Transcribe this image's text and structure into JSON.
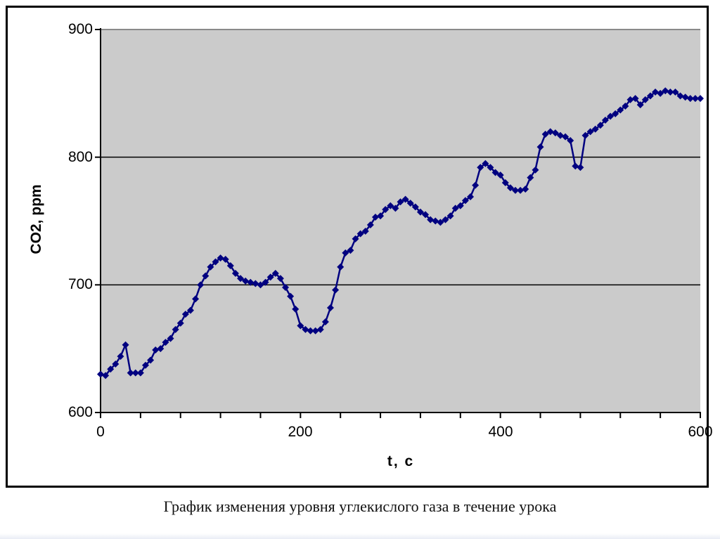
{
  "page": {
    "caption": "График изменения уровня углекислого газа в течение урока"
  },
  "chart_data": {
    "type": "line",
    "title": "",
    "xlabel": "t, c",
    "ylabel": "CO2, ppm",
    "xlim": [
      0,
      600
    ],
    "ylim": [
      600,
      900
    ],
    "x_tick_labels": [
      "0",
      "200",
      "400",
      "600"
    ],
    "x_major_ticks": [
      0,
      200,
      400,
      600
    ],
    "x_minor_tick_interval": 40,
    "y_tick_labels": [
      "600",
      "700",
      "800",
      "900"
    ],
    "y_ticks": [
      600,
      700,
      800,
      900
    ],
    "grid": "horizontal gridlines at 700, 800, 900",
    "legend": "none",
    "marker": "diamond",
    "series_color": "#000080",
    "plot_bg_color": "#CBCBCB",
    "points": [
      [
        0,
        630
      ],
      [
        5,
        629
      ],
      [
        10,
        634
      ],
      [
        15,
        638
      ],
      [
        20,
        644
      ],
      [
        25,
        653
      ],
      [
        30,
        631
      ],
      [
        35,
        631
      ],
      [
        40,
        631
      ],
      [
        45,
        637
      ],
      [
        50,
        641
      ],
      [
        55,
        649
      ],
      [
        60,
        650
      ],
      [
        65,
        655
      ],
      [
        70,
        658
      ],
      [
        75,
        665
      ],
      [
        80,
        670
      ],
      [
        85,
        677
      ],
      [
        90,
        680
      ],
      [
        95,
        689
      ],
      [
        100,
        700
      ],
      [
        105,
        707
      ],
      [
        110,
        714
      ],
      [
        115,
        718
      ],
      [
        120,
        721
      ],
      [
        125,
        720
      ],
      [
        130,
        715
      ],
      [
        135,
        709
      ],
      [
        140,
        705
      ],
      [
        145,
        703
      ],
      [
        150,
        702
      ],
      [
        155,
        701
      ],
      [
        160,
        700
      ],
      [
        165,
        702
      ],
      [
        170,
        706
      ],
      [
        175,
        709
      ],
      [
        180,
        705
      ],
      [
        185,
        698
      ],
      [
        190,
        691
      ],
      [
        195,
        681
      ],
      [
        200,
        668
      ],
      [
        205,
        665
      ],
      [
        210,
        664
      ],
      [
        215,
        664
      ],
      [
        220,
        665
      ],
      [
        225,
        671
      ],
      [
        230,
        682
      ],
      [
        235,
        696
      ],
      [
        240,
        714
      ],
      [
        245,
        725
      ],
      [
        250,
        727
      ],
      [
        255,
        736
      ],
      [
        260,
        740
      ],
      [
        265,
        742
      ],
      [
        270,
        747
      ],
      [
        275,
        753
      ],
      [
        280,
        754
      ],
      [
        285,
        759
      ],
      [
        290,
        762
      ],
      [
        295,
        760
      ],
      [
        300,
        765
      ],
      [
        305,
        767
      ],
      [
        310,
        764
      ],
      [
        315,
        761
      ],
      [
        320,
        757
      ],
      [
        325,
        755
      ],
      [
        330,
        751
      ],
      [
        335,
        750
      ],
      [
        340,
        749
      ],
      [
        345,
        751
      ],
      [
        350,
        754
      ],
      [
        355,
        760
      ],
      [
        360,
        762
      ],
      [
        365,
        766
      ],
      [
        370,
        769
      ],
      [
        375,
        778
      ],
      [
        380,
        792
      ],
      [
        385,
        795
      ],
      [
        390,
        792
      ],
      [
        395,
        788
      ],
      [
        400,
        786
      ],
      [
        405,
        780
      ],
      [
        410,
        776
      ],
      [
        415,
        774
      ],
      [
        420,
        774
      ],
      [
        425,
        775
      ],
      [
        430,
        784
      ],
      [
        435,
        790
      ],
      [
        440,
        808
      ],
      [
        445,
        818
      ],
      [
        450,
        820
      ],
      [
        455,
        819
      ],
      [
        460,
        817
      ],
      [
        465,
        816
      ],
      [
        470,
        813
      ],
      [
        475,
        793
      ],
      [
        480,
        792
      ],
      [
        485,
        817
      ],
      [
        490,
        820
      ],
      [
        495,
        822
      ],
      [
        500,
        825
      ],
      [
        505,
        829
      ],
      [
        510,
        832
      ],
      [
        515,
        834
      ],
      [
        520,
        837
      ],
      [
        525,
        840
      ],
      [
        530,
        845
      ],
      [
        535,
        846
      ],
      [
        540,
        841
      ],
      [
        545,
        845
      ],
      [
        550,
        848
      ],
      [
        555,
        851
      ],
      [
        560,
        850
      ],
      [
        565,
        852
      ],
      [
        570,
        851
      ],
      [
        575,
        851
      ],
      [
        580,
        848
      ],
      [
        585,
        847
      ],
      [
        590,
        846
      ],
      [
        595,
        846
      ],
      [
        600,
        846
      ]
    ]
  }
}
